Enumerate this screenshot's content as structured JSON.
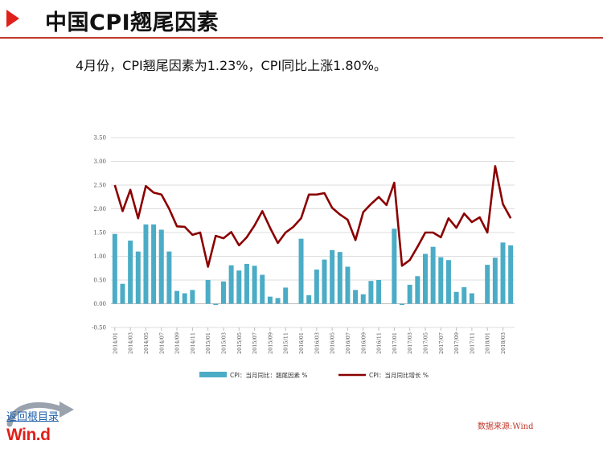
{
  "header": {
    "title": "中国CPI翘尾因素"
  },
  "summary": {
    "text": "4月份，CPI翘尾因素为1.23%，CPI同比上涨1.80%。"
  },
  "footer": {
    "source": "数据来源:Wind",
    "back_link": "返回根目录",
    "logo": "Win.d"
  },
  "colors": {
    "bar": "#4bacc6",
    "line": "#8b0000",
    "accent": "#e0201b"
  },
  "chart_data": {
    "type": "bar+line",
    "title": "",
    "xlabel": "",
    "ylabel": "",
    "ylim": [
      -0.5,
      3.5
    ],
    "yticks": [
      "3.50",
      "3.00",
      "2.50",
      "2.00",
      "1.50",
      "1.00",
      "0.50",
      "0.00",
      "-0.50"
    ],
    "grid": true,
    "legend_position": "bottom",
    "x_tick_labels": [
      "2014/01",
      "2014/03",
      "2014/05",
      "2014/07",
      "2014/09",
      "2014/11",
      "2015/01",
      "2015/03",
      "2015/05",
      "2015/07",
      "2015/09",
      "2015/11",
      "2016/01",
      "2016/03",
      "2016/05",
      "2016/07",
      "2016/09",
      "2016/11",
      "2017/01",
      "2017/03",
      "2017/05",
      "2017/07",
      "2017/09",
      "2017/11",
      "2018/01",
      "2018/03"
    ],
    "months": [
      "2014/01",
      "2014/02",
      "2014/03",
      "2014/04",
      "2014/05",
      "2014/06",
      "2014/07",
      "2014/08",
      "2014/09",
      "2014/10",
      "2014/11",
      "2014/12",
      "2015/01",
      "2015/02",
      "2015/03",
      "2015/04",
      "2015/05",
      "2015/06",
      "2015/07",
      "2015/08",
      "2015/09",
      "2015/10",
      "2015/11",
      "2015/12",
      "2016/01",
      "2016/02",
      "2016/03",
      "2016/04",
      "2016/05",
      "2016/06",
      "2016/07",
      "2016/08",
      "2016/09",
      "2016/10",
      "2016/11",
      "2016/12",
      "2017/01",
      "2017/02",
      "2017/03",
      "2017/04",
      "2017/05",
      "2017/06",
      "2017/07",
      "2017/08",
      "2017/09",
      "2017/10",
      "2017/11",
      "2017/12",
      "2018/01",
      "2018/02",
      "2018/03",
      "2018/04"
    ],
    "series": [
      {
        "name": "CPI：当月同比：翘尾因素 %",
        "type": "bar",
        "values": [
          1.47,
          0.42,
          1.33,
          1.1,
          1.67,
          1.67,
          1.56,
          1.1,
          0.27,
          0.22,
          0.29,
          0,
          0.5,
          -0.02,
          0.47,
          0.81,
          0.7,
          0.84,
          0.8,
          0.61,
          0.15,
          0.12,
          0.34,
          0,
          1.37,
          0.18,
          0.72,
          0.93,
          1.13,
          1.09,
          0.78,
          0.29,
          0.2,
          0.48,
          0.5,
          0,
          1.58,
          -0.02,
          0.4,
          0.58,
          1.05,
          1.2,
          0.98,
          0.92,
          0.25,
          0.35,
          0.22,
          0,
          0.82,
          0.97,
          1.29,
          1.23
        ]
      },
      {
        "name": "CPI：当月同比增长 %",
        "type": "line",
        "values": [
          2.5,
          1.95,
          2.4,
          1.8,
          2.48,
          2.34,
          2.3,
          2.0,
          1.63,
          1.62,
          1.45,
          1.5,
          0.78,
          1.43,
          1.38,
          1.51,
          1.23,
          1.4,
          1.65,
          1.95,
          1.6,
          1.28,
          1.5,
          1.62,
          1.8,
          2.3,
          2.3,
          2.33,
          2.02,
          1.88,
          1.77,
          1.34,
          1.93,
          2.1,
          2.25,
          2.08,
          2.55,
          0.8,
          0.92,
          1.2,
          1.5,
          1.5,
          1.4,
          1.8,
          1.6,
          1.9,
          1.72,
          1.82,
          1.5,
          2.9,
          2.1,
          1.8
        ]
      }
    ]
  }
}
